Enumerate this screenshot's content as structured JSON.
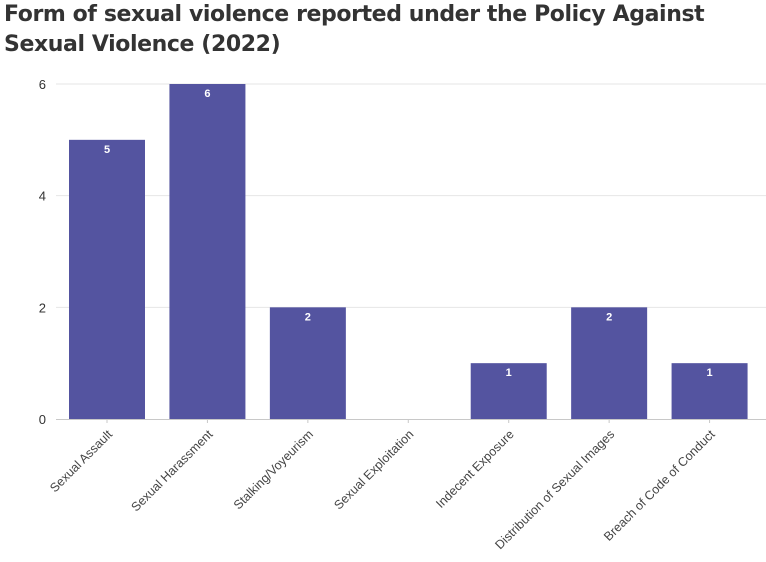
{
  "chart_data": {
    "type": "bar",
    "title": "Form of sexual violence reported under the Policy Against Sexual Violence (2022)",
    "categories": [
      "Sexual Assault",
      "Sexual Harassment",
      "Stalking/Voyeurism",
      "Sexual Exploitation",
      "Indecent Exposure",
      "Distribution of Sexual Images",
      "Breach of Code of Conduct"
    ],
    "values": [
      5,
      6,
      2,
      0,
      1,
      2,
      1
    ],
    "data_labels": [
      "5",
      "6",
      "2",
      "",
      "1",
      "2",
      "1"
    ],
    "ylim": [
      0,
      6
    ],
    "yticks": [
      0,
      2,
      4,
      6
    ],
    "xlabel": "",
    "ylabel": "",
    "grid": true,
    "legend": "none",
    "bar_color": "#5454a0"
  }
}
